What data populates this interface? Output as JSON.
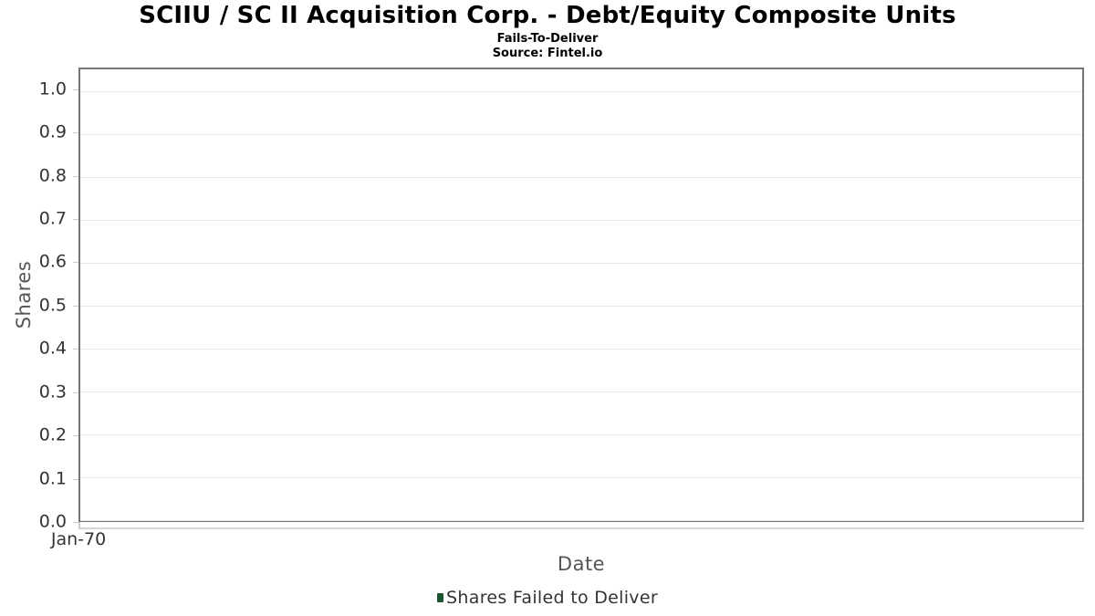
{
  "chart": {
    "title": "SCIIU / SC II Acquisition Corp. - Debt/Equity Composite Units",
    "subtitle": "Fails-To-Deliver",
    "source": "Source: Fintel.io",
    "xlabel": "Date",
    "ylabel": "Shares",
    "x_tick_labels": [
      "Jan-70"
    ],
    "y_tick_labels": [
      "0.0",
      "0.1",
      "0.2",
      "0.3",
      "0.4",
      "0.5",
      "0.6",
      "0.7",
      "0.8",
      "0.9",
      "1.0"
    ],
    "legend": {
      "label": "Shares Failed to Deliver"
    }
  },
  "chart_data": {
    "type": "column",
    "title": "SCIIU / SC II Acquisition Corp. - Debt/Equity Composite Units",
    "subtitle": "Fails-To-Deliver",
    "annotations": [
      "Source: Fintel.io"
    ],
    "xlabel": "Date",
    "ylabel": "Shares",
    "x": [
      "Jan-70"
    ],
    "series": [
      {
        "name": "Shares Failed to Deliver",
        "color": "#1e5631",
        "values": []
      }
    ],
    "y_ticks": [
      0.0,
      0.1,
      0.2,
      0.3,
      0.4,
      0.5,
      0.6,
      0.7,
      0.8,
      0.9,
      1.0
    ],
    "ylim": [
      0,
      1.05
    ],
    "grid": "horizontal",
    "legend_position": "bottom"
  },
  "colors": {
    "grid": "#e6e6e6",
    "plot_border": "#757575",
    "tick": "#cccccc",
    "axis_line": "#d6d6d6",
    "tick_label": "#333333",
    "axis_title": "#555555",
    "legend_marker": "#1e5631"
  }
}
